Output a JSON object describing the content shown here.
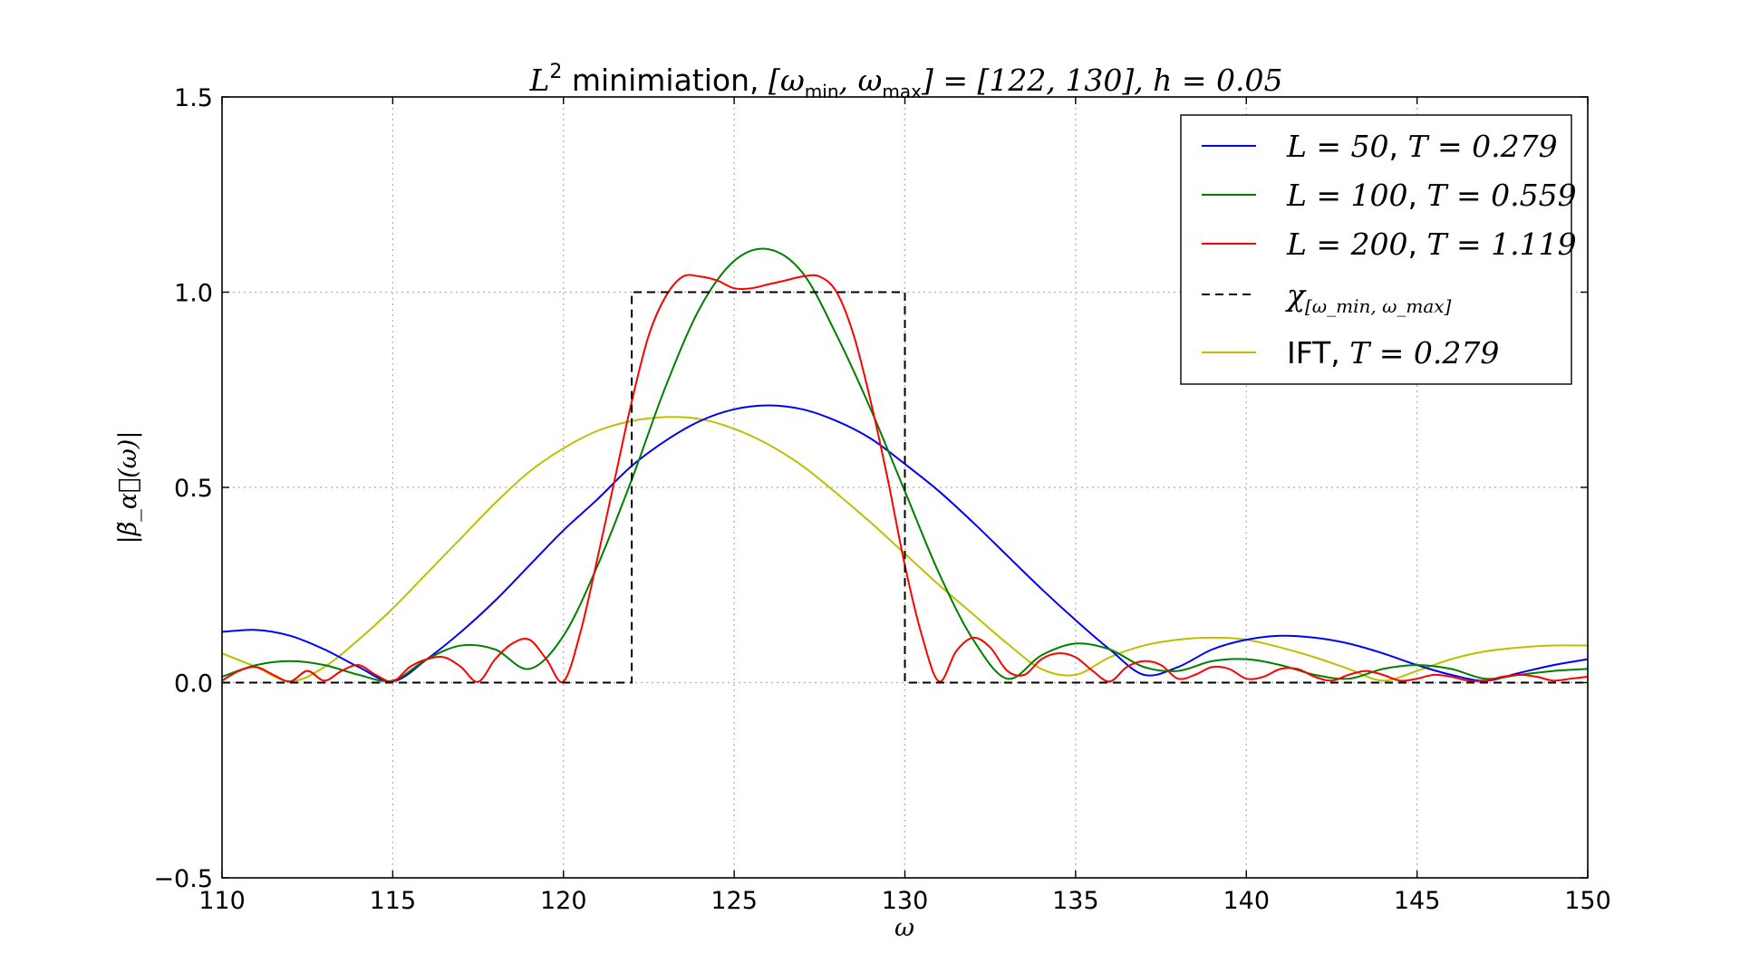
{
  "chart_data": {
    "type": "line",
    "title": "L² minimiation, [ω_min, ω_max] = [122, 130], h = 0.05",
    "title_parts": {
      "prefix_math": "L",
      "prefix_sup": "2",
      "text": " minimiation, ",
      "interval_math": "[ω",
      "interval_sub1": "min",
      "interval_mid": ", ω",
      "interval_sub2": "max",
      "interval_end": "] = [122, 130], ",
      "h_math": "h = 0.05"
    },
    "xlabel": "ω",
    "ylabel": "|β̃_α⃗(ω)|",
    "xlim": [
      110,
      150
    ],
    "ylim": [
      -0.5,
      1.5
    ],
    "xticks": [
      110,
      115,
      120,
      125,
      130,
      135,
      140,
      145,
      150
    ],
    "xtick_labels": [
      "110",
      "115",
      "120",
      "125",
      "130",
      "135",
      "140",
      "145",
      "150"
    ],
    "yticks": [
      -0.5,
      0.0,
      0.5,
      1.0,
      1.5
    ],
    "ytick_labels": [
      "−0.5",
      "0.0",
      "0.5",
      "1.0",
      "1.5"
    ],
    "grid": true,
    "legend_position": "top-right",
    "interval": [
      122,
      130
    ],
    "series": [
      {
        "name": "L = 50, T = 0.279",
        "legend_math": "L = 50",
        "legend_sep": ", ",
        "legend_math2": "T = 0.279",
        "color": "#0000ff",
        "x": [
          110,
          111,
          112,
          113,
          114,
          115,
          116,
          117,
          118,
          119,
          120,
          121,
          122,
          123,
          124,
          125,
          126,
          127,
          128,
          129,
          130,
          131,
          132,
          133,
          134,
          135,
          136,
          137,
          138,
          139,
          140,
          141,
          142,
          143,
          144,
          145,
          146,
          147,
          148,
          149,
          150
        ],
        "y": [
          0.13,
          0.135,
          0.12,
          0.085,
          0.04,
          0.003,
          0.06,
          0.13,
          0.21,
          0.3,
          0.39,
          0.47,
          0.555,
          0.62,
          0.67,
          0.7,
          0.71,
          0.7,
          0.67,
          0.625,
          0.56,
          0.49,
          0.41,
          0.325,
          0.24,
          0.16,
          0.085,
          0.02,
          0.04,
          0.085,
          0.11,
          0.12,
          0.115,
          0.1,
          0.075,
          0.045,
          0.02,
          0.005,
          0.025,
          0.045,
          0.06
        ]
      },
      {
        "name": "L = 100, T = 0.559",
        "legend_math": "L = 100",
        "legend_sep": ", ",
        "legend_math2": "T = 0.559",
        "color": "#008000",
        "x": [
          110,
          111,
          112,
          113,
          114,
          115,
          116,
          117,
          118,
          119,
          120,
          121,
          122,
          123,
          124,
          125,
          126,
          127,
          128,
          129,
          130,
          131,
          132,
          133,
          134,
          135,
          136,
          137,
          138,
          139,
          140,
          141,
          142,
          143,
          144,
          145,
          146,
          147,
          148,
          149,
          150
        ],
        "y": [
          0.015,
          0.045,
          0.055,
          0.045,
          0.02,
          0.005,
          0.06,
          0.095,
          0.085,
          0.035,
          0.12,
          0.3,
          0.52,
          0.76,
          0.96,
          1.08,
          1.11,
          1.05,
          0.89,
          0.7,
          0.49,
          0.28,
          0.11,
          0.01,
          0.07,
          0.1,
          0.085,
          0.04,
          0.03,
          0.055,
          0.06,
          0.045,
          0.02,
          0.01,
          0.035,
          0.045,
          0.035,
          0.01,
          0.02,
          0.03,
          0.035
        ]
      },
      {
        "name": "L = 200, T = 1.119",
        "legend_math": "L = 200",
        "legend_sep": ", ",
        "legend_math2": "T = 1.119",
        "color": "#ff0000",
        "x": [
          110,
          110.5,
          111,
          111.5,
          112,
          112.5,
          113,
          113.5,
          114,
          114.5,
          115,
          115.5,
          116,
          116.5,
          117,
          117.5,
          118,
          118.5,
          119,
          119.5,
          120,
          120.5,
          121,
          121.5,
          122,
          122.5,
          123,
          123.5,
          124,
          124.5,
          125,
          125.5,
          126,
          126.5,
          127,
          127.5,
          128,
          128.5,
          129,
          129.5,
          130,
          130.5,
          131,
          131.5,
          132,
          132.5,
          133,
          133.5,
          134,
          134.5,
          135,
          135.5,
          136,
          136.5,
          137,
          137.5,
          138,
          138.5,
          139,
          139.5,
          140,
          140.5,
          141,
          141.5,
          142,
          142.5,
          143,
          143.5,
          144,
          144.5,
          145,
          145.5,
          146,
          146.5,
          147,
          147.5,
          148,
          148.5,
          149,
          149.5,
          150
        ],
        "y": [
          0.005,
          0.03,
          0.04,
          0.02,
          0.003,
          0.03,
          0.005,
          0.03,
          0.045,
          0.02,
          0.003,
          0.04,
          0.06,
          0.065,
          0.04,
          0.002,
          0.06,
          0.1,
          0.11,
          0.06,
          0.003,
          0.13,
          0.32,
          0.52,
          0.72,
          0.89,
          0.99,
          1.04,
          1.04,
          1.03,
          1.01,
          1.01,
          1.02,
          1.03,
          1.04,
          1.04,
          1.0,
          0.89,
          0.72,
          0.52,
          0.3,
          0.12,
          0.003,
          0.08,
          0.115,
          0.09,
          0.03,
          0.02,
          0.06,
          0.075,
          0.065,
          0.03,
          0.003,
          0.04,
          0.055,
          0.045,
          0.01,
          0.02,
          0.04,
          0.035,
          0.01,
          0.015,
          0.035,
          0.035,
          0.015,
          0.005,
          0.02,
          0.03,
          0.02,
          0.005,
          0.01,
          0.02,
          0.015,
          0.005,
          0.005,
          0.015,
          0.02,
          0.015,
          0.005,
          0.01,
          0.015
        ]
      },
      {
        "name": "χ[ω_min, ω_max]",
        "legend_math": "χ",
        "legend_sub": "[ω_min, ω_max]",
        "color": "#000000",
        "dashed": true,
        "x": [
          110,
          122,
          122,
          130,
          130,
          150
        ],
        "y": [
          0,
          0,
          1,
          1,
          0,
          0
        ]
      },
      {
        "name": "IFT, T = 0.279",
        "legend_text": "IFT",
        "legend_sep": ", ",
        "legend_math2": "T = 0.279",
        "color": "#bfbf00",
        "x": [
          110,
          111,
          112,
          113,
          114,
          115,
          116,
          117,
          118,
          119,
          120,
          121,
          122,
          123,
          124,
          125,
          126,
          127,
          128,
          129,
          130,
          131,
          132,
          133,
          134,
          135,
          136,
          137,
          138,
          139,
          140,
          141,
          142,
          143,
          144,
          145,
          146,
          147,
          148,
          149,
          150
        ],
        "y": [
          0.075,
          0.04,
          0.003,
          0.04,
          0.11,
          0.19,
          0.28,
          0.37,
          0.46,
          0.54,
          0.6,
          0.645,
          0.67,
          0.68,
          0.675,
          0.65,
          0.61,
          0.555,
          0.485,
          0.41,
          0.33,
          0.25,
          0.175,
          0.1,
          0.035,
          0.02,
          0.065,
          0.095,
          0.11,
          0.115,
          0.11,
          0.09,
          0.065,
          0.035,
          0.005,
          0.03,
          0.06,
          0.08,
          0.09,
          0.095,
          0.095
        ]
      }
    ]
  }
}
